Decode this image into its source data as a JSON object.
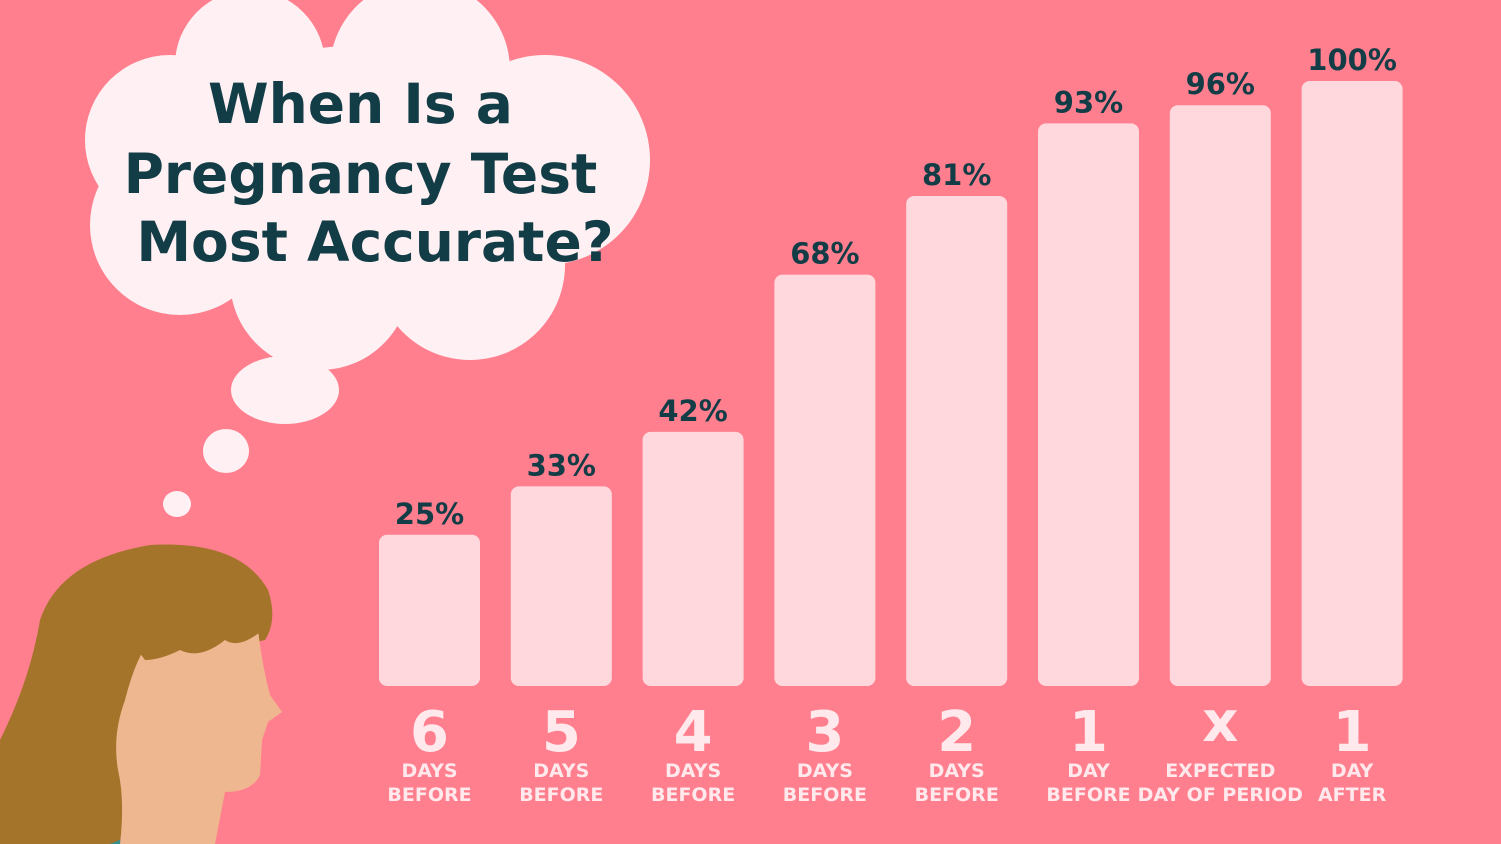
{
  "title_lines": [
    "When Is a",
    "Pregnancy Test",
    "Most Accurate?"
  ],
  "colors": {
    "background": "#ff7f8e",
    "bar": "#ffd8dd",
    "text_dark": "#123c46",
    "label_light": "#ffe9ec",
    "cloud": "#fff1f3",
    "hair": "#a3742a",
    "skin": "#efb78f",
    "shirt": "#3a8f8a"
  },
  "chart_data": {
    "type": "bar",
    "title": "When Is a Pregnancy Test Most Accurate?",
    "categories": [
      "6 DAYS BEFORE",
      "5 DAYS BEFORE",
      "4 DAYS BEFORE",
      "3 DAYS BEFORE",
      "2 DAYS BEFORE",
      "1 DAY BEFORE",
      "x EXPECTED DAY OF PERIOD",
      "1 DAY AFTER"
    ],
    "values": [
      25,
      33,
      42,
      68,
      81,
      93,
      96,
      100
    ],
    "value_labels": [
      "25%",
      "33%",
      "42%",
      "68%",
      "81%",
      "93%",
      "96%",
      "100%"
    ],
    "big_labels": [
      "6",
      "5",
      "4",
      "3",
      "2",
      "1",
      "x",
      "1"
    ],
    "small_labels_line1": [
      "DAYS",
      "DAYS",
      "DAYS",
      "DAYS",
      "DAYS",
      "DAY",
      "EXPECTED",
      "DAY"
    ],
    "small_labels_line2": [
      "BEFORE",
      "BEFORE",
      "BEFORE",
      "BEFORE",
      "BEFORE",
      "BEFORE",
      "DAY OF PERIOD",
      "AFTER"
    ],
    "ylim": [
      0,
      100
    ],
    "grid": false,
    "legend": "none"
  }
}
